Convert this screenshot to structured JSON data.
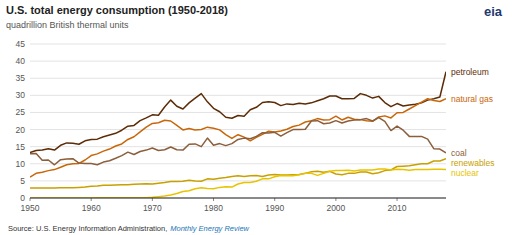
{
  "chart_data": {
    "type": "line",
    "title": "U.S. total energy consumption (1950-2018)",
    "subtitle": "quadrillion British thermal units",
    "annotations": [
      "eia",
      "Source: U.S. Energy Information Administration, ",
      "Monthly Energy Review"
    ],
    "x": [
      1950,
      1951,
      1952,
      1953,
      1954,
      1955,
      1956,
      1957,
      1958,
      1959,
      1960,
      1961,
      1962,
      1963,
      1964,
      1965,
      1966,
      1967,
      1968,
      1969,
      1970,
      1971,
      1972,
      1973,
      1974,
      1975,
      1976,
      1977,
      1978,
      1979,
      1980,
      1981,
      1982,
      1983,
      1984,
      1985,
      1986,
      1987,
      1988,
      1989,
      1990,
      1991,
      1992,
      1993,
      1994,
      1995,
      1996,
      1997,
      1998,
      1999,
      2000,
      2001,
      2002,
      2003,
      2004,
      2005,
      2006,
      2007,
      2008,
      2009,
      2010,
      2011,
      2012,
      2013,
      2014,
      2015,
      2016,
      2017,
      2018
    ],
    "series": [
      {
        "name": "petroleum",
        "color": "#5c2c06",
        "values": [
          13.3,
          13.9,
          14.0,
          14.4,
          14.0,
          15.4,
          16.1,
          16.0,
          15.7,
          16.7,
          17.1,
          17.2,
          17.9,
          18.4,
          18.9,
          19.8,
          21.0,
          21.2,
          22.6,
          23.4,
          24.3,
          24.2,
          26.6,
          28.6,
          26.8,
          26.0,
          27.8,
          29.2,
          30.5,
          28.1,
          26.2,
          25.2,
          23.6,
          23.3,
          24.1,
          23.9,
          25.8,
          26.5,
          27.9,
          28.1,
          27.9,
          27.0,
          27.5,
          27.3,
          27.7,
          27.5,
          27.8,
          28.4,
          29.0,
          29.8,
          29.8,
          29.0,
          29.0,
          29.1,
          30.5,
          30.0,
          29.2,
          29.7,
          27.9,
          26.7,
          27.6,
          26.9,
          27.2,
          27.4,
          27.8,
          28.6,
          29.0,
          29.5,
          36.9
        ]
      },
      {
        "name": "natural gas",
        "color": "#c8670a",
        "values": [
          6.1,
          7.2,
          7.5,
          8.0,
          8.3,
          9.0,
          9.7,
          10.0,
          10.1,
          11.1,
          12.4,
          12.9,
          13.7,
          14.3,
          15.2,
          15.8,
          17.1,
          17.9,
          19.3,
          20.7,
          21.8,
          22.0,
          22.7,
          22.5,
          21.2,
          19.9,
          20.3,
          19.9,
          20.0,
          20.7,
          20.4,
          19.9,
          18.5,
          17.4,
          18.5,
          17.8,
          16.7,
          17.7,
          18.6,
          19.5,
          19.3,
          19.6,
          20.1,
          20.9,
          21.3,
          22.2,
          22.6,
          23.2,
          22.8,
          22.9,
          23.9,
          22.8,
          23.6,
          23.0,
          22.9,
          22.6,
          22.4,
          23.7,
          24.0,
          23.4,
          24.9,
          25.0,
          26.0,
          27.0,
          28.0,
          29.0,
          28.5,
          28.2,
          29.0
        ]
      },
      {
        "name": "coal",
        "color": "#8b5e3c",
        "values": [
          12.9,
          13.0,
          11.0,
          11.1,
          9.7,
          11.2,
          11.4,
          11.5,
          10.2,
          10.1,
          10.1,
          9.7,
          10.5,
          10.9,
          11.6,
          12.4,
          13.4,
          12.7,
          13.6,
          14.0,
          14.6,
          13.9,
          14.1,
          14.9,
          14.1,
          14.0,
          15.7,
          15.8,
          15.0,
          17.5,
          15.4,
          15.9,
          15.3,
          15.9,
          17.1,
          17.5,
          17.3,
          18.0,
          19.1,
          19.0,
          19.2,
          18.1,
          19.1,
          20.0,
          20.0,
          20.1,
          22.5,
          22.6,
          21.7,
          21.9,
          22.6,
          21.9,
          22.5,
          22.8,
          22.9,
          23.2,
          22.5,
          23.5,
          22.4,
          19.7,
          21.0,
          19.8,
          18.0,
          18.0,
          18.0,
          17.2,
          14.4,
          14.3,
          13.2
        ]
      },
      {
        "name": "renewables",
        "color": "#c8a000",
        "values": [
          2.9,
          2.9,
          2.9,
          2.9,
          2.9,
          3.0,
          3.0,
          3.0,
          3.1,
          3.2,
          3.4,
          3.5,
          3.7,
          3.7,
          3.8,
          3.9,
          3.9,
          4.0,
          4.1,
          4.2,
          4.1,
          4.3,
          4.5,
          4.8,
          4.8,
          4.9,
          5.2,
          5.0,
          4.9,
          5.6,
          5.5,
          5.8,
          6.0,
          6.3,
          6.5,
          6.3,
          6.5,
          6.6,
          6.3,
          6.7,
          6.9,
          6.7,
          6.7,
          6.8,
          6.9,
          7.2,
          7.7,
          7.8,
          7.5,
          7.8,
          7.0,
          6.8,
          7.2,
          7.2,
          7.6,
          7.6,
          7.1,
          7.4,
          8.0,
          8.2,
          9.2,
          9.3,
          9.4,
          9.7,
          10.0,
          10.0,
          10.8,
          10.8,
          11.5
        ]
      },
      {
        "name": "nuclear",
        "color": "#e8c400",
        "values": [
          0.0,
          0.0,
          0.0,
          0.0,
          0.0,
          0.0,
          0.0,
          0.0,
          0.0,
          0.0,
          0.0,
          0.1,
          0.1,
          0.1,
          0.1,
          0.1,
          0.1,
          0.1,
          0.1,
          0.1,
          0.2,
          0.4,
          0.6,
          0.9,
          1.3,
          1.9,
          2.1,
          2.7,
          3.0,
          2.8,
          2.7,
          3.1,
          3.3,
          3.2,
          4.1,
          4.5,
          4.5,
          4.9,
          5.6,
          5.6,
          6.2,
          6.6,
          6.5,
          6.5,
          6.8,
          7.2,
          7.2,
          6.6,
          7.2,
          7.8,
          8.0,
          8.0,
          8.1,
          7.9,
          8.2,
          8.2,
          8.2,
          8.5,
          8.5,
          8.2,
          8.4,
          8.3,
          8.1,
          8.3,
          8.3,
          8.3,
          8.4,
          8.4,
          8.3
        ]
      }
    ],
    "xlim": [
      1950,
      2018
    ],
    "ylim": [
      0,
      45
    ],
    "xticks": [
      1950,
      1960,
      1970,
      1980,
      1990,
      2000,
      2010
    ],
    "yticks": [
      0,
      5,
      10,
      15,
      20,
      25,
      30,
      35,
      40,
      45
    ],
    "grid": true
  }
}
